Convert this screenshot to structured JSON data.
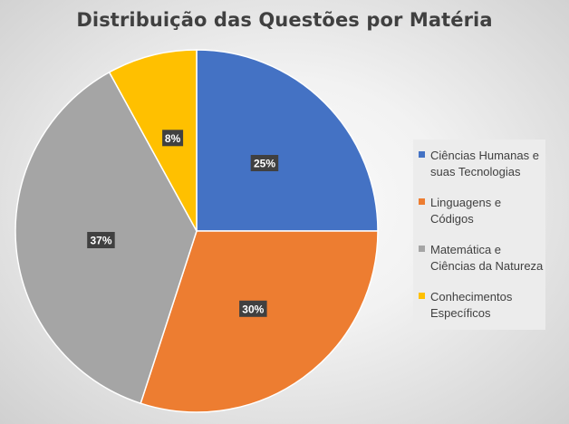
{
  "chart_data": {
    "type": "pie",
    "title": "Distribuição das Questões por Matéria",
    "categories": [
      "Ciências Humanas e suas Tecnologias",
      "Linguagens e Códigos",
      "Matemática e Ciências da Natureza",
      "Conhecimentos Específicos"
    ],
    "values": [
      25,
      30,
      37,
      8
    ],
    "data_labels": [
      "25%",
      "30%",
      "37%",
      "8%"
    ],
    "colors": [
      "#4472c4",
      "#ed7d31",
      "#a5a5a5",
      "#ffc000"
    ],
    "legend_position": "right",
    "start_angle": "12 o'clock, clockwise"
  }
}
